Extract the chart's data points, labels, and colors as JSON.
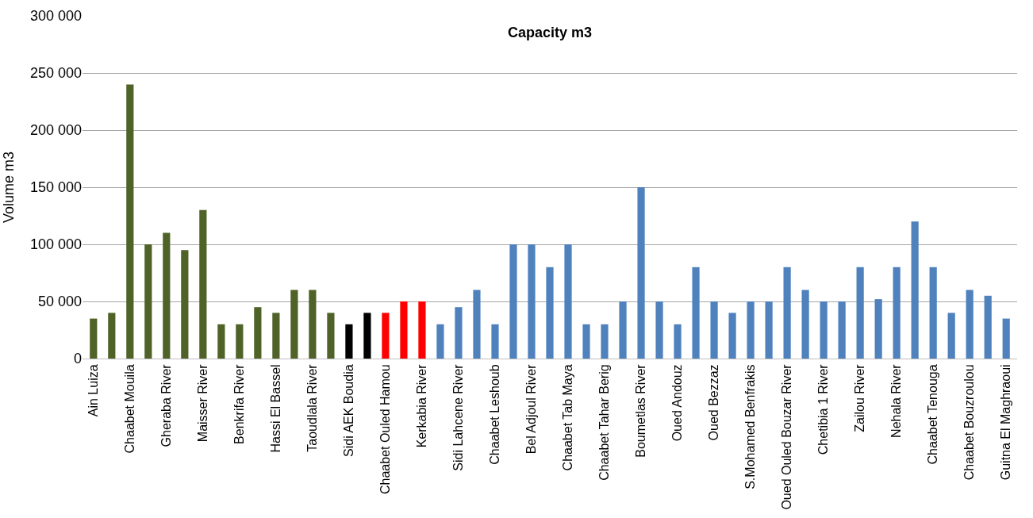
{
  "chart_data": {
    "type": "bar",
    "title": "Capacity m3",
    "ylabel": "Volume m3",
    "categories": [
      "Ain Luiza",
      null,
      "Chaabet Mouila",
      null,
      "Gheraba River",
      null,
      "Maisser River",
      null,
      "Benkrifa River",
      null,
      "Hassi El Bassel",
      null,
      "Taoudlala River",
      null,
      "Sidi AEK Boudia",
      null,
      "Chaabet Ouled Hamou",
      null,
      "Kerkabia River",
      null,
      "Sidi Lahcene River",
      null,
      "Chaabet Leshoub",
      null,
      "Bel Adjoul River",
      null,
      "Chaabet Tab Maya",
      null,
      "Chaabet Tahar Berig",
      null,
      "Boumetlas River",
      null,
      "Oued Andouz",
      null,
      "Oued Bezzaz",
      null,
      "S.Mohamed Benfrakis",
      null,
      "Oued Ouled Bouzar River",
      null,
      "Chetibia 1 River",
      null,
      "Zailou River",
      null,
      "Nehala River",
      null,
      "Chaabet Tenouga",
      null,
      "Chaabet Bouzroulou",
      null,
      "Guitna El Maghraoui"
    ],
    "values": [
      35000,
      40000,
      240000,
      100000,
      110000,
      95000,
      130000,
      30000,
      30000,
      45000,
      40000,
      60000,
      60000,
      40000,
      30000,
      40000,
      40000,
      50000,
      50000,
      30000,
      45000,
      60000,
      30000,
      100000,
      100000,
      80000,
      100000,
      30000,
      30000,
      50000,
      150000,
      50000,
      30000,
      80000,
      50000,
      40000,
      50000,
      50000,
      80000,
      60000,
      50000,
      50000,
      80000,
      52000,
      80000,
      120000,
      80000,
      40000,
      60000,
      55000,
      35000
    ],
    "colors": [
      "#4f6228",
      "#4f6228",
      "#4f6228",
      "#4f6228",
      "#4f6228",
      "#4f6228",
      "#4f6228",
      "#4f6228",
      "#4f6228",
      "#4f6228",
      "#4f6228",
      "#4f6228",
      "#4f6228",
      "#4f6228",
      "#000000",
      "#000000",
      "#ff0000",
      "#ff0000",
      "#ff0000",
      "#4f81bd",
      "#4f81bd",
      "#4f81bd",
      "#4f81bd",
      "#4f81bd",
      "#4f81bd",
      "#4f81bd",
      "#4f81bd",
      "#4f81bd",
      "#4f81bd",
      "#4f81bd",
      "#4f81bd",
      "#4f81bd",
      "#4f81bd",
      "#4f81bd",
      "#4f81bd",
      "#4f81bd",
      "#4f81bd",
      "#4f81bd",
      "#4f81bd",
      "#4f81bd",
      "#4f81bd",
      "#4f81bd",
      "#4f81bd",
      "#4f81bd",
      "#4f81bd",
      "#4f81bd",
      "#4f81bd",
      "#4f81bd",
      "#4f81bd",
      "#4f81bd",
      "#4f81bd"
    ],
    "ylim": [
      0,
      300000
    ],
    "yticks": [
      {
        "value": 0,
        "label": "0"
      },
      {
        "value": 50000,
        "label": "50 000"
      },
      {
        "value": 100000,
        "label": "100 000"
      },
      {
        "value": 150000,
        "label": "150 000"
      },
      {
        "value": 200000,
        "label": "200 000"
      },
      {
        "value": 250000,
        "label": "250 000"
      },
      {
        "value": 300000,
        "label": "300 000"
      }
    ],
    "grid": "y"
  }
}
